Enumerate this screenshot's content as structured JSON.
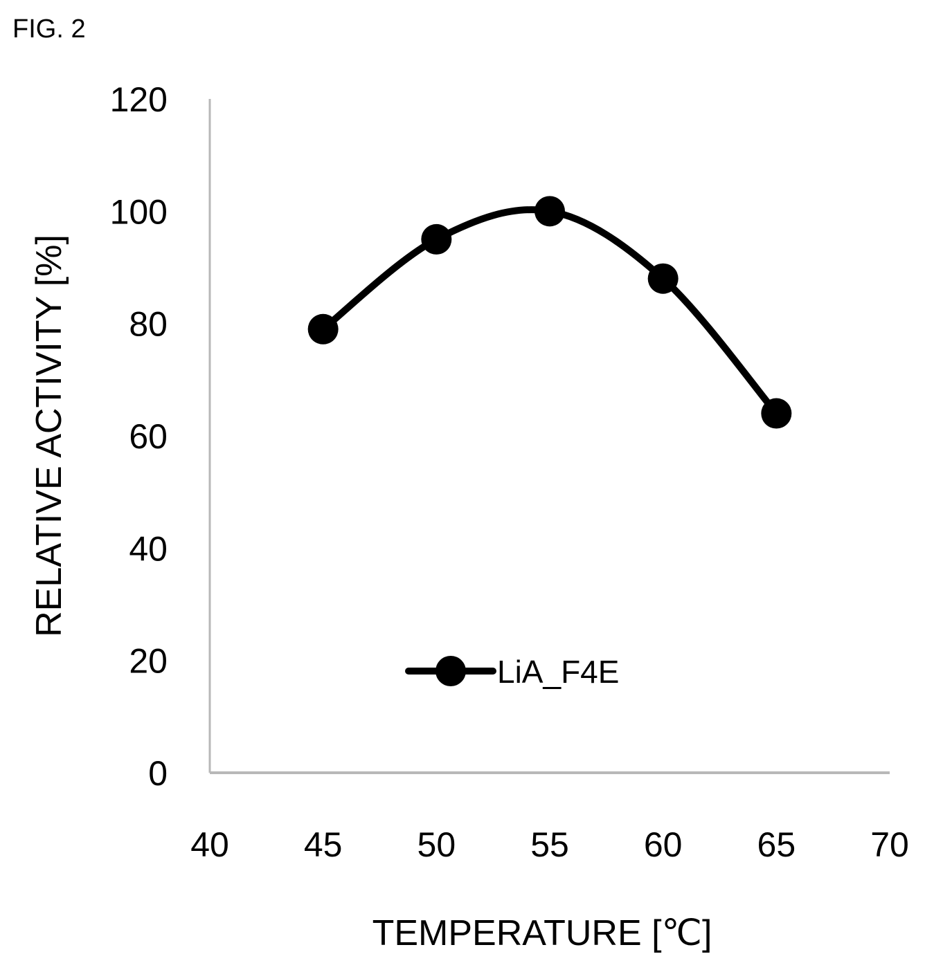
{
  "figure": {
    "label": "FIG. 2"
  },
  "chart_data": {
    "type": "line",
    "title": "",
    "xlabel": "TEMPERATURE [℃]",
    "ylabel": "RELATIVE ACTIVITY [%]",
    "xlim": [
      40,
      70
    ],
    "ylim": [
      0,
      120
    ],
    "xticks": [
      40,
      45,
      50,
      55,
      60,
      65,
      70
    ],
    "yticks": [
      0,
      20,
      40,
      60,
      80,
      100,
      120
    ],
    "grid": false,
    "legend_position": "center-bottom",
    "smooth": true,
    "series": [
      {
        "name": "LiA_F4E",
        "x": [
          45,
          50,
          55,
          60,
          65
        ],
        "y": [
          79,
          95,
          100,
          88,
          64
        ],
        "color": "#000000",
        "marker": "circle"
      }
    ]
  }
}
